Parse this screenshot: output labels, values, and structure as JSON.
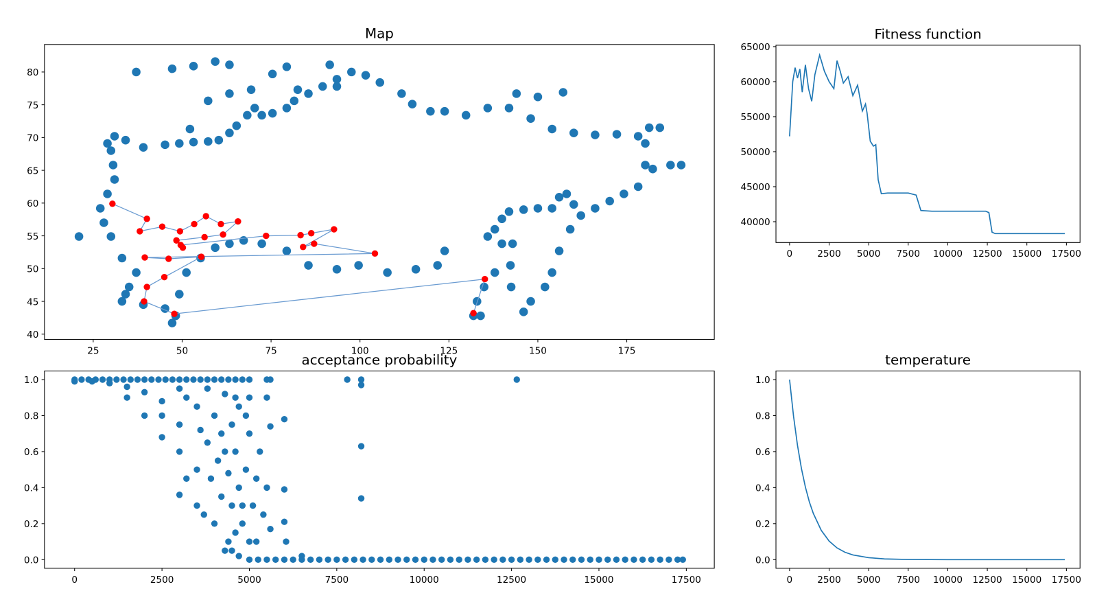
{
  "chart_data": [
    {
      "type": "scatter",
      "title": "Map",
      "xlim": [
        11.3,
        199.6
      ],
      "ylim": [
        39.2,
        84.2
      ],
      "xticks": [
        25,
        50,
        75,
        100,
        125,
        150,
        175
      ],
      "yticks": [
        40,
        45,
        50,
        55,
        60,
        65,
        70,
        75,
        80
      ],
      "series": [
        {
          "color": "#1f77b4",
          "x": [
            29.0,
            31.0,
            34.1,
            39.1,
            45.2,
            49.2,
            53.2,
            57.3,
            60.3,
            63.3,
            65.3,
            68.3,
            70.4,
            72.4,
            75.4,
            79.4,
            81.5,
            85.5,
            89.5,
            93.5,
            97.6,
            101.6,
            105.6,
            111.7,
            114.7,
            119.8,
            123.8,
            129.8,
            135.9,
            141.9,
            148.0,
            154.0,
            160.1,
            166.1,
            172.2,
            178.2,
            180.2,
            180.2,
            182.3,
            187.3,
            190.3,
            178.2,
            174.2,
            170.2,
            166.1,
            162.1,
            159.1,
            156.0,
            154.0,
            152.0,
            148.0,
            146.0,
            160.1,
            158.1,
            156.0,
            154.0,
            150.0,
            146.0,
            141.9,
            139.9,
            137.9,
            135.9,
            142.9,
            142.3,
            142.5,
            139.9,
            137.9,
            134.9,
            132.9,
            131.9,
            133.9,
            123.8,
            121.8,
            115.7,
            107.7,
            99.6,
            93.5,
            85.5,
            79.4,
            72.4,
            67.3,
            63.3,
            59.3,
            55.2,
            51.2,
            49.2,
            48.2,
            47.2,
            45.2,
            39.1,
            34.1,
            33.1,
            35.1,
            37.1,
            33.1,
            30.0,
            28.0,
            27.0,
            29.0,
            31.0,
            30.6,
            30.0,
            37.1,
            47.2,
            53.2,
            59.3,
            63.3,
            79.4,
            75.4,
            91.5,
            93.5,
            82.5,
            144.0,
            150.0,
            157.1,
            181.3,
            184.3,
            21.0,
            52.2,
            57.3,
            63.3,
            69.4
          ],
          "values": [
            69.1,
            70.2,
            69.6,
            68.5,
            68.9,
            69.1,
            69.3,
            69.4,
            69.6,
            70.7,
            71.8,
            73.4,
            74.5,
            73.4,
            73.7,
            74.5,
            75.6,
            76.7,
            77.8,
            78.9,
            80.0,
            79.5,
            78.4,
            76.7,
            75.1,
            74.0,
            74.0,
            73.4,
            74.5,
            74.5,
            72.9,
            71.3,
            70.7,
            70.4,
            70.5,
            70.2,
            69.1,
            65.8,
            65.2,
            65.8,
            65.8,
            62.5,
            61.4,
            60.3,
            59.2,
            58.1,
            56.0,
            52.7,
            49.4,
            47.2,
            45.0,
            43.4,
            59.8,
            61.4,
            60.9,
            59.2,
            59.2,
            59.0,
            58.7,
            57.6,
            56.0,
            54.9,
            53.8,
            50.5,
            47.2,
            53.8,
            49.4,
            47.2,
            45.0,
            42.8,
            42.8,
            52.7,
            50.5,
            49.9,
            49.4,
            50.5,
            49.9,
            50.5,
            52.7,
            53.8,
            54.3,
            53.8,
            53.2,
            51.6,
            49.4,
            46.1,
            42.8,
            41.7,
            43.9,
            44.5,
            46.1,
            45.0,
            47.2,
            49.4,
            51.6,
            54.9,
            57.0,
            59.2,
            61.4,
            63.6,
            65.8,
            68.0,
            80.0,
            80.5,
            80.9,
            81.6,
            81.1,
            80.8,
            79.7,
            81.1,
            77.8,
            77.3,
            76.7,
            76.2,
            76.9,
            71.5,
            71.5,
            54.9,
            71.3,
            75.6,
            76.7,
            77.3
          ]
        },
        {
          "color": "#ff0000",
          "connect": true,
          "line_color": "#6a9bd1",
          "x": [
            30.4,
            40.1,
            38.1,
            44.4,
            49.4,
            53.4,
            56.7,
            60.9,
            65.7,
            61.5,
            56.3,
            48.4,
            50.2,
            49.6,
            73.6,
            83.3,
            86.3,
            92.7,
            84.0,
            87.1,
            104.2,
            39.5,
            46.2,
            55.4,
            45.0,
            40.1,
            39.3,
            47.8,
            135.1,
            131.9
          ],
          "values": [
            59.9,
            57.6,
            55.7,
            56.4,
            55.7,
            56.8,
            58.0,
            56.8,
            57.2,
            55.2,
            54.8,
            54.3,
            53.2,
            53.6,
            55.0,
            55.1,
            55.4,
            56.0,
            53.3,
            53.8,
            52.3,
            51.7,
            51.5,
            51.8,
            48.7,
            47.2,
            45.0,
            43.1,
            48.4,
            43.2
          ]
        }
      ]
    },
    {
      "type": "line",
      "title": "Fitness function",
      "xlim": [
        -861,
        18361
      ],
      "ylim": [
        37029,
        65205
      ],
      "xticks": [
        0,
        2500,
        5000,
        7500,
        10000,
        12500,
        15000,
        17500
      ],
      "yticks": [
        40000,
        45000,
        50000,
        55000,
        60000,
        65000
      ],
      "series": [
        {
          "color": "#1f77b4",
          "x": [
            0,
            200,
            350,
            500,
            650,
            800,
            1000,
            1200,
            1400,
            1600,
            1900,
            2200,
            2500,
            2800,
            3000,
            3200,
            3400,
            3700,
            4000,
            4300,
            4600,
            4800,
            4900,
            5100,
            5300,
            5450,
            5600,
            5800,
            6200,
            7500,
            8000,
            8300,
            9000,
            12400,
            12600,
            12800,
            13000,
            17400
          ],
          "values": [
            52200,
            60000,
            62000,
            60500,
            61800,
            58500,
            62400,
            59000,
            57200,
            61000,
            63800,
            61500,
            60000,
            59000,
            63000,
            61500,
            59800,
            60700,
            58000,
            59500,
            55800,
            56800,
            55500,
            51500,
            50800,
            51000,
            46000,
            44000,
            44100,
            44100,
            43800,
            41600,
            41500,
            41500,
            41300,
            38500,
            38300,
            38300
          ]
        }
      ]
    },
    {
      "type": "scatter",
      "title": "acceptance probability",
      "xlim": [
        -862,
        18300
      ],
      "ylim": [
        -0.048,
        1.048
      ],
      "xticks": [
        0,
        2500,
        5000,
        7500,
        10000,
        12500,
        15000,
        17500
      ],
      "yticks": [
        {
          "value": 0,
          "label": "0.0"
        },
        0.2,
        0.4,
        0.6,
        0.8,
        {
          "value": 1,
          "label": "1.0"
        }
      ],
      "series": [
        {
          "color": "#1f77b4",
          "x": [
            0,
            200,
            400,
            600,
            800,
            1000,
            1200,
            1400,
            1600,
            1800,
            2000,
            2200,
            2400,
            2600,
            2800,
            3000,
            3200,
            3400,
            3600,
            3800,
            4000,
            4200,
            4400,
            4600,
            4800,
            5000,
            0,
            500,
            1000,
            1500,
            2000,
            2500,
            2000,
            2500,
            3000,
            3000,
            3200,
            3000,
            3500,
            3500,
            3700,
            3900,
            4000,
            4200,
            4300,
            4400,
            4500,
            4500,
            4600,
            4700,
            4800,
            4900,
            5000,
            5100,
            5200,
            5300,
            5400,
            5500,
            5500,
            5600,
            5600,
            6000,
            6000,
            6000,
            6050,
            6500,
            7800,
            8200,
            8200,
            8200,
            8200,
            12650,
            4000,
            3500,
            4500,
            5000,
            3000,
            4600,
            4200,
            3800,
            1500,
            2500,
            3200,
            3800,
            4300,
            4700,
            3600,
            4100,
            4400,
            4800,
            5200,
            4300,
            4700,
            5000,
            5600,
            5500,
            4600,
            4900,
            5000,
            5250,
            5500,
            5750,
            6000,
            6250,
            6500,
            6750,
            7000,
            7250,
            7500,
            7750,
            8000,
            8250,
            8500,
            8750,
            9000,
            9250,
            9500,
            9750,
            10000,
            10250,
            10500,
            10750,
            11000,
            11250,
            11500,
            11750,
            12000,
            12250,
            12500,
            12750,
            13000,
            13250,
            13500,
            13750,
            14000,
            14250,
            14500,
            14750,
            15000,
            15250,
            15500,
            15750,
            16000,
            16250,
            16500,
            16750,
            17000,
            17250,
            17400
          ],
          "values": [
            1,
            1,
            1,
            1,
            1,
            1,
            1,
            1,
            1,
            1,
            1,
            1,
            1,
            1,
            1,
            1,
            1,
            1,
            1,
            1,
            1,
            1,
            1,
            1,
            1,
            1,
            0.99,
            0.99,
            0.98,
            0.96,
            0.93,
            0.88,
            0.8,
            0.68,
            0.75,
            0.6,
            0.45,
            0.36,
            0.5,
            0.3,
            0.25,
            0.45,
            0.2,
            0.35,
            0.6,
            0.1,
            0.3,
            0.05,
            0.15,
            0.4,
            0.2,
            0.5,
            0.7,
            0.3,
            0.1,
            0.6,
            0.25,
            0.9,
            0.4,
            0.17,
            0.74,
            0.78,
            0.39,
            0.21,
            0.1,
            0.02,
            1,
            1,
            0.97,
            0.63,
            0.34,
            1,
            0.8,
            0.85,
            0.75,
            0.9,
            0.95,
            0.6,
            0.7,
            0.65,
            0.9,
            0.8,
            0.9,
            0.95,
            0.92,
            0.85,
            0.72,
            0.55,
            0.48,
            0.3,
            0.45,
            0.05,
            0.02,
            0.1,
            1,
            1,
            0.9,
            0.8,
            0,
            0,
            0,
            0,
            0,
            0,
            0,
            0,
            0,
            0,
            0,
            0,
            0,
            0,
            0,
            0,
            0,
            0,
            0,
            0,
            0,
            0,
            0,
            0,
            0,
            0,
            0,
            0,
            0,
            0,
            0,
            0,
            0,
            0,
            0,
            0,
            0,
            0,
            0,
            0,
            0,
            0,
            0,
            0,
            0,
            0,
            0,
            0,
            0,
            0,
            0
          ]
        }
      ]
    },
    {
      "type": "line",
      "title": "temperature",
      "xlim": [
        -861,
        18361
      ],
      "ylim": [
        -0.048,
        1.048
      ],
      "xticks": [
        0,
        2500,
        5000,
        7500,
        10000,
        12500,
        15000,
        17500
      ],
      "yticks": [
        {
          "value": 0,
          "label": "0.0"
        },
        0.2,
        0.4,
        0.6,
        0.8,
        {
          "value": 1,
          "label": "1.0"
        }
      ],
      "series": [
        {
          "color": "#1f77b4",
          "x": [
            0,
            250,
            500,
            750,
            1000,
            1250,
            1500,
            2000,
            2500,
            3000,
            3500,
            4000,
            5000,
            6000,
            7500,
            10000,
            12500,
            15000,
            17400
          ],
          "values": [
            1,
            0.797,
            0.635,
            0.506,
            0.403,
            0.321,
            0.257,
            0.163,
            0.103,
            0.065,
            0.041,
            0.026,
            0.011,
            0.004,
            0.001,
            0,
            0,
            0,
            0
          ]
        }
      ]
    }
  ]
}
